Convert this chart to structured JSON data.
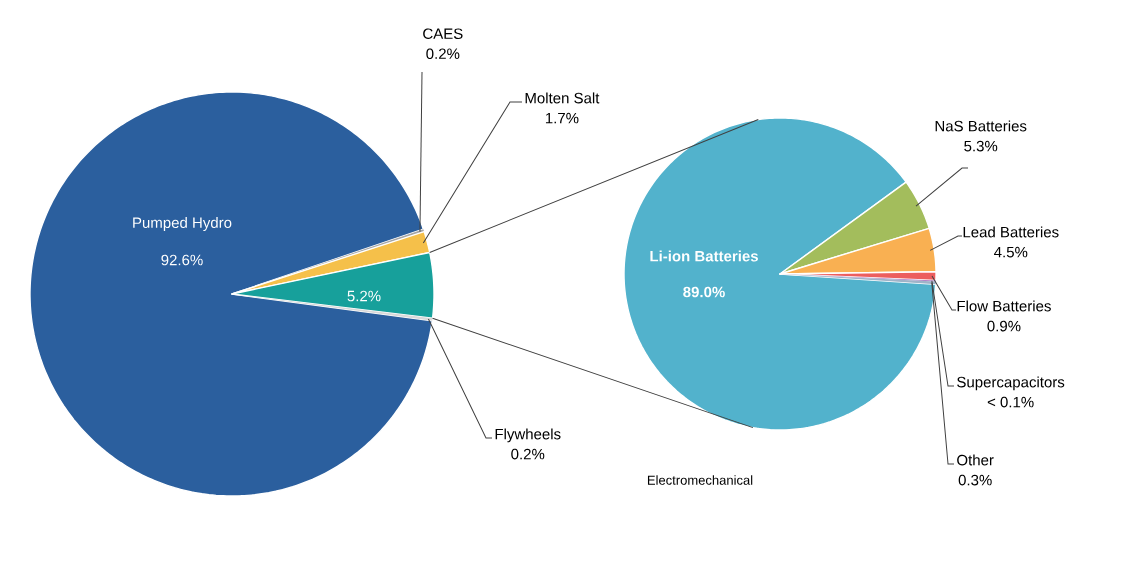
{
  "chart_data": [
    {
      "type": "pie",
      "categories": [
        "Pumped Hydro",
        "CAES",
        "Molten Salt",
        null,
        "Flywheels"
      ],
      "values": [
        92.6,
        0.2,
        1.7,
        5.2,
        0.2
      ],
      "colors": [
        "#2b5f9e",
        "#a6a6a6",
        "#f5c04a",
        "#17a09b",
        "#d9d9d9"
      ],
      "value_labels": [
        "92.6%",
        "0.2%",
        "1.7%",
        "5.2%",
        "0.2%"
      ]
    },
    {
      "type": "pie",
      "xlabel": "Electromechanical",
      "categories": [
        "Li-ion Batteries",
        "NaS Batteries",
        "Lead Batteries",
        "Flow Batteries",
        "Supercapacitors",
        "Other"
      ],
      "values": [
        89.0,
        5.3,
        4.5,
        0.9,
        0.09,
        0.3
      ],
      "colors": [
        "#52b2cc",
        "#a3bd5c",
        "#f9b052",
        "#ec5e5e",
        "#b07cc6",
        "#9fb3c8"
      ],
      "value_labels": [
        "89.0%",
        "5.3%",
        "4.5%",
        "0.9%",
        "< 0.1%",
        "0.3%"
      ]
    }
  ]
}
